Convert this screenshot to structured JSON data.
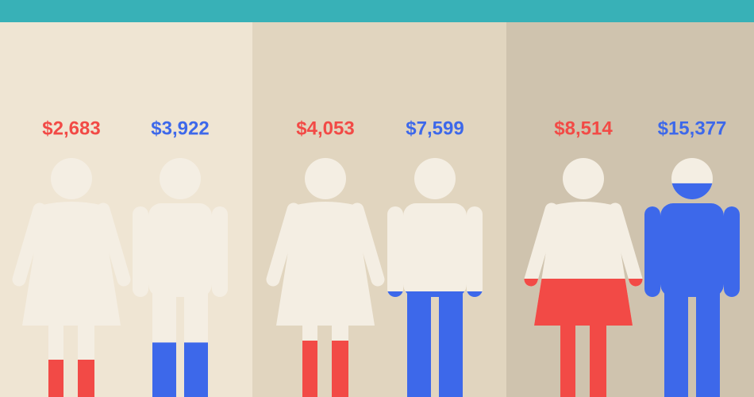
{
  "chart_data": {
    "type": "pictogram",
    "values": [
      2683,
      3922,
      4053,
      7599,
      8514,
      15377
    ],
    "value_labels": [
      "$2,683",
      "$3,922",
      "$4,053",
      "$7,599",
      "$8,514",
      "$15,377"
    ],
    "shapes": [
      "female",
      "male",
      "female",
      "male",
      "female",
      "male"
    ],
    "colors": [
      "#f24a46",
      "#3d68ea",
      "#f24a46",
      "#3d68ea",
      "#f24a46",
      "#3d68ea"
    ]
  }
}
